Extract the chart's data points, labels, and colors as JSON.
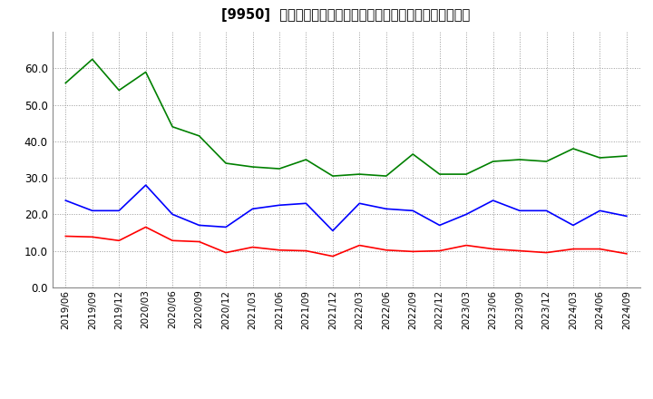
{
  "title": "[9950]  売上債権回転率、買入債務回転率、在庫回転率の推移",
  "x_labels": [
    "2019/06",
    "2019/09",
    "2019/12",
    "2020/03",
    "2020/06",
    "2020/09",
    "2020/12",
    "2021/03",
    "2021/06",
    "2021/09",
    "2021/12",
    "2022/03",
    "2022/06",
    "2022/09",
    "2022/12",
    "2023/03",
    "2023/06",
    "2023/09",
    "2023/12",
    "2024/03",
    "2024/06",
    "2024/09"
  ],
  "uriken": [
    14.0,
    13.8,
    12.8,
    16.5,
    12.8,
    12.5,
    9.5,
    11.0,
    10.2,
    10.0,
    8.5,
    11.5,
    10.2,
    9.8,
    10.0,
    11.5,
    10.5,
    10.0,
    9.5,
    10.5,
    10.5,
    9.2
  ],
  "kaiire": [
    23.8,
    21.0,
    21.0,
    28.0,
    20.0,
    17.0,
    16.5,
    21.5,
    22.5,
    23.0,
    15.5,
    23.0,
    21.5,
    21.0,
    17.0,
    20.0,
    23.8,
    21.0,
    21.0,
    17.0,
    21.0,
    19.5
  ],
  "zaiko": [
    56.0,
    62.5,
    54.0,
    59.0,
    44.0,
    41.5,
    34.0,
    33.0,
    32.5,
    35.0,
    30.5,
    31.0,
    30.5,
    36.5,
    31.0,
    31.0,
    34.5,
    35.0,
    34.5,
    38.0,
    35.5,
    36.0
  ],
  "uriken_color": "#ff0000",
  "kaiire_color": "#0000ff",
  "zaiko_color": "#008000",
  "legend_uriken": "売上債権回転率",
  "legend_kaiire": "買入債務回転率",
  "legend_zaiko": "在庫回転率",
  "ylim": [
    0.0,
    70.0
  ],
  "yticks": [
    0.0,
    10.0,
    20.0,
    30.0,
    40.0,
    50.0,
    60.0
  ],
  "background_color": "#ffffff",
  "grid_color": "#999999"
}
